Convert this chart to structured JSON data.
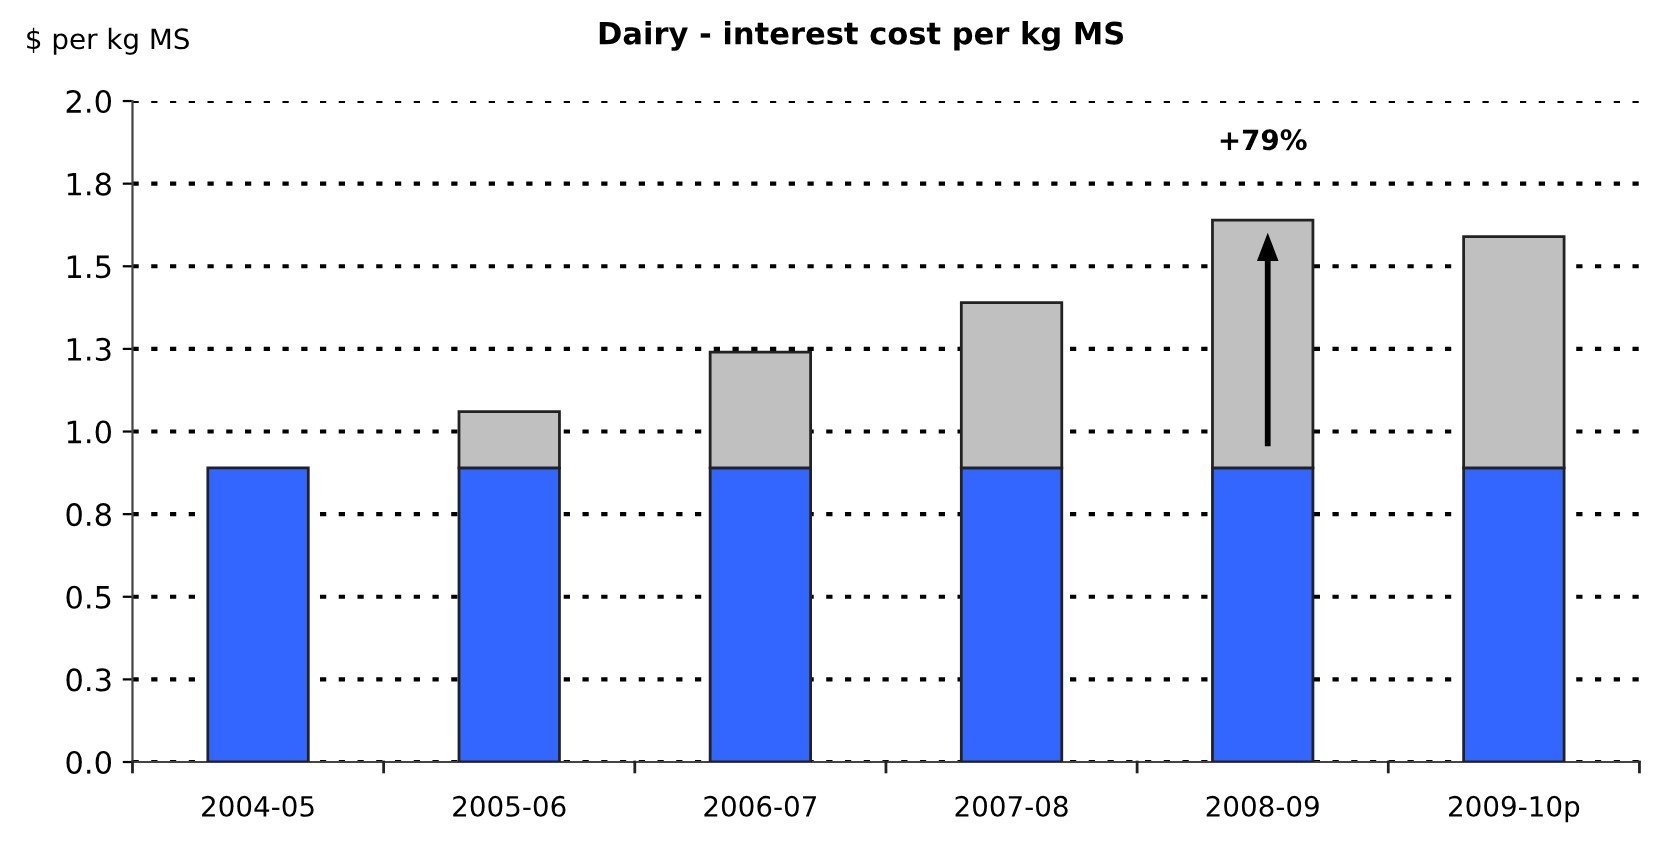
{
  "chart_data": {
    "type": "bar",
    "title": "Dairy - interest cost per kg MS",
    "ylabel": "$ per kg MS",
    "categories": [
      "2004-05",
      "2005-06",
      "2006-07",
      "2007-08",
      "2008-09",
      "2009-10p"
    ],
    "stacked": true,
    "series": [
      {
        "color": "#3366ff",
        "values": [
          0.89,
          0.89,
          0.89,
          0.89,
          0.89,
          0.89
        ]
      },
      {
        "color": "#c0c0c0",
        "values": [
          null,
          0.17,
          0.35,
          0.5,
          0.75,
          0.7
        ]
      }
    ],
    "ylim": [
      0,
      2.0
    ],
    "yticks": [
      {
        "value": 0,
        "label": "0.0"
      },
      {
        "value": 0.25,
        "label": "0.3"
      },
      {
        "value": 0.5,
        "label": "0.5"
      },
      {
        "value": 0.75,
        "label": "0.8"
      },
      {
        "value": 1.0,
        "label": "1.0"
      },
      {
        "value": 1.25,
        "label": "1.3"
      },
      {
        "value": 1.5,
        "label": "1.5"
      },
      {
        "value": 1.75,
        "label": "1.8"
      },
      {
        "value": 2.0,
        "label": "2.0"
      }
    ],
    "grid": "y",
    "annotations": [
      "+79%"
    ]
  }
}
